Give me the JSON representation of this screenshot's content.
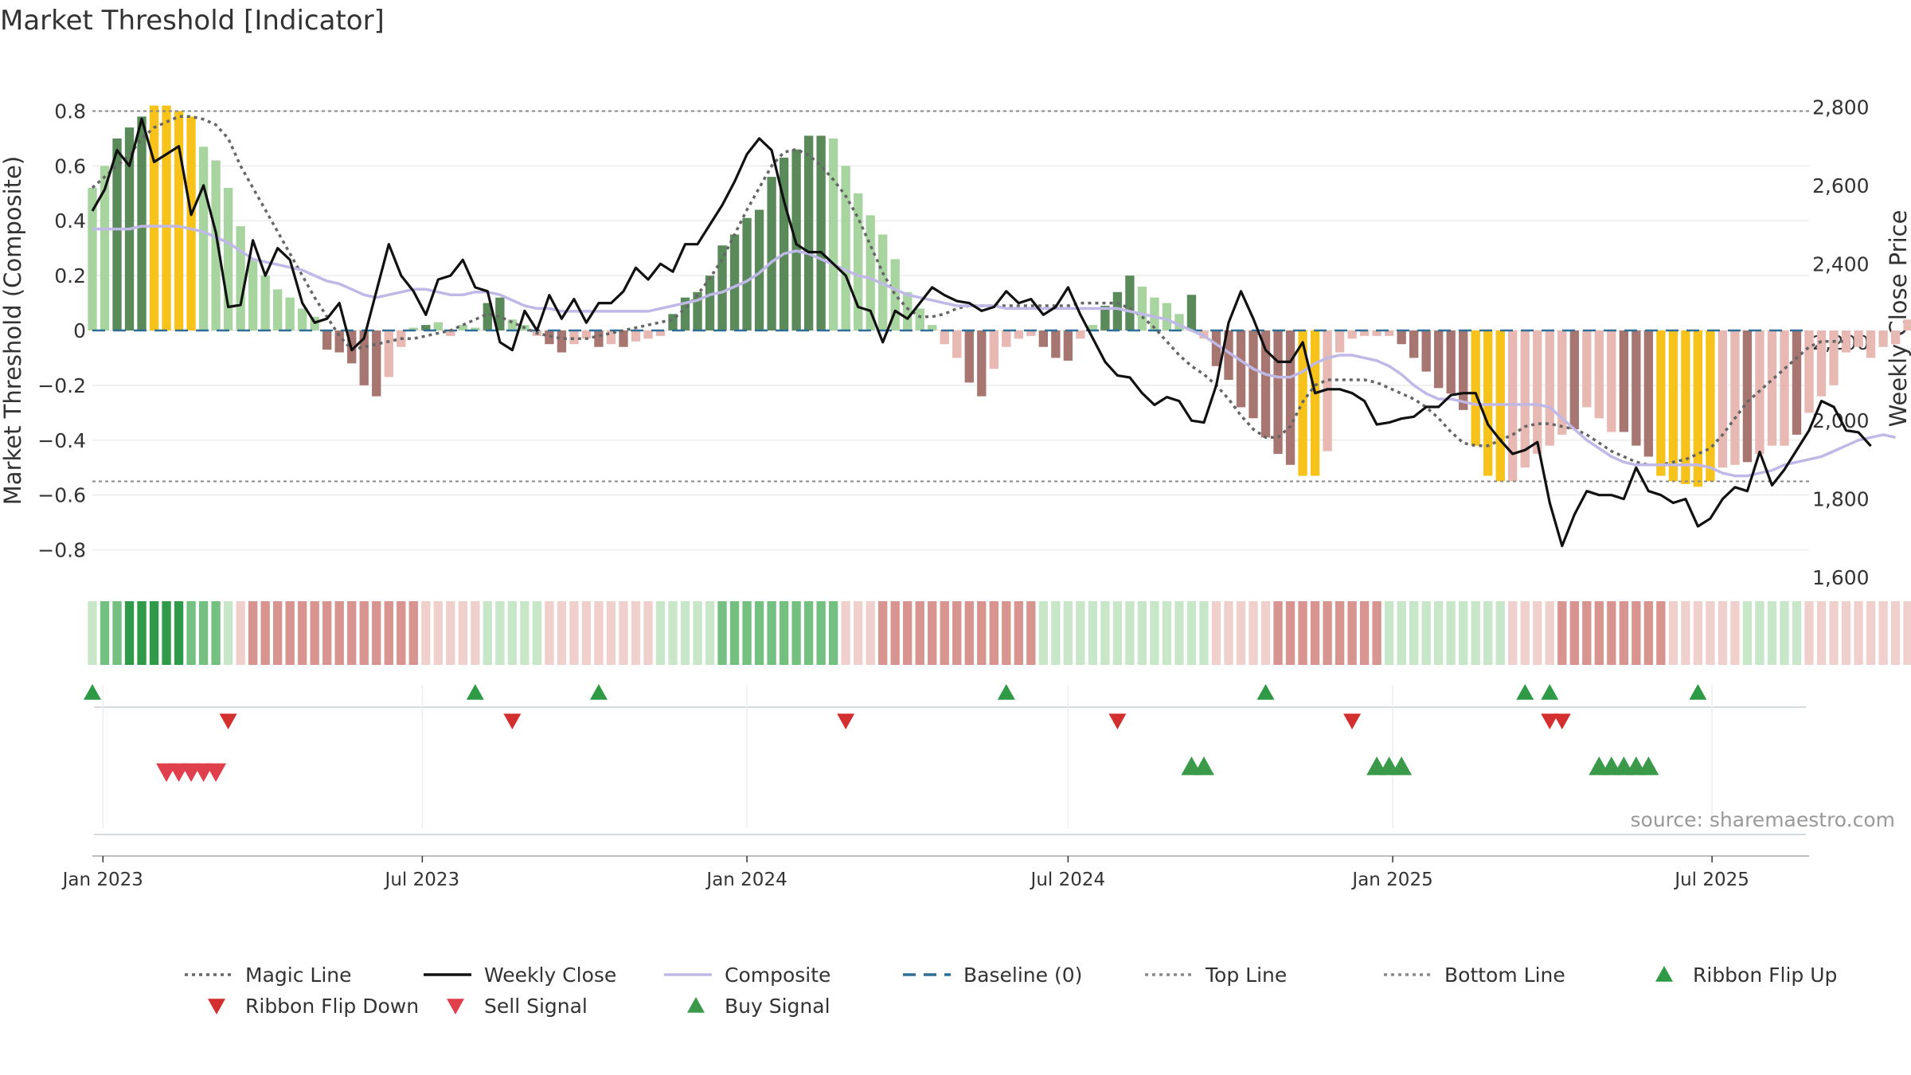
{
  "title": "Market Threshold [Indicator]",
  "source": "source: sharemaestro.com",
  "colors": {
    "green_dark": "#5a8a5a",
    "green_light": "#a8d4a0",
    "red_dark": "#a87670",
    "red_light": "#e8b8b2",
    "extreme": "#f7c31a",
    "close": "#111111",
    "composite": "#c0b8e6",
    "magic": "#666666",
    "baseline": "#2f6e96",
    "threshold": "#888888",
    "up_marker": "#2e9a46",
    "down_marker": "#d32f2f",
    "sell_marker": "#e0404c",
    "buy_marker": "#3a9a4a"
  },
  "chart_data": {
    "type": "bar",
    "title": "Market Threshold [Indicator]",
    "ylabel": "Market Threshold (Composite)",
    "y2label": "Weekly Close Price",
    "ylim": [
      -0.9,
      0.9
    ],
    "y2lim": [
      1600,
      2860
    ],
    "yticks": [
      -0.8,
      -0.6,
      -0.4,
      -0.2,
      0,
      0.2,
      0.4,
      0.6,
      0.8
    ],
    "ytick_labels": [
      "−0.8",
      "−0.6",
      "−0.4",
      "−0.2",
      "0",
      "0.2",
      "0.4",
      "0.6",
      "0.8"
    ],
    "y2ticks": [
      1600,
      1800,
      2000,
      2200,
      2400,
      2600,
      2800
    ],
    "y2tick_labels": [
      "1,600",
      "1,800",
      "2,000",
      "2,200",
      "2,400",
      "2,600",
      "2,800"
    ],
    "x_start": "2022-12-26",
    "x_end": "2025-08-25",
    "xticks": [
      {
        "date": "2023-01-01",
        "label": "Jan 2023"
      },
      {
        "date": "2023-07-01",
        "label": "Jul 2023"
      },
      {
        "date": "2024-01-01",
        "label": "Jan 2024"
      },
      {
        "date": "2024-07-01",
        "label": "Jul 2024"
      },
      {
        "date": "2025-01-01",
        "label": "Jan 2025"
      },
      {
        "date": "2025-07-01",
        "label": "Jul 2025"
      }
    ],
    "top_line": 0.8,
    "bottom_line": -0.55,
    "composite_bars": [
      0.52,
      0.6,
      0.7,
      0.74,
      0.78,
      0.82,
      0.82,
      0.8,
      0.78,
      0.67,
      0.62,
      0.52,
      0.38,
      0.26,
      0.2,
      0.15,
      0.12,
      0.08,
      0.05,
      -0.07,
      -0.08,
      -0.12,
      -0.2,
      -0.24,
      -0.17,
      -0.06,
      0.01,
      0.02,
      0.03,
      -0.02,
      0.02,
      0.01,
      0.1,
      0.12,
      0.04,
      0.02,
      -0.02,
      -0.05,
      -0.08,
      -0.05,
      -0.03,
      -0.06,
      -0.05,
      -0.06,
      -0.04,
      -0.03,
      -0.02,
      0.06,
      0.12,
      0.14,
      0.2,
      0.31,
      0.35,
      0.41,
      0.44,
      0.56,
      0.63,
      0.66,
      0.71,
      0.71,
      0.7,
      0.6,
      0.5,
      0.42,
      0.35,
      0.26,
      0.14,
      0.08,
      0.02,
      -0.05,
      -0.1,
      -0.19,
      -0.24,
      -0.14,
      -0.06,
      -0.03,
      -0.02,
      -0.06,
      -0.1,
      -0.11,
      -0.03,
      0.02,
      0.09,
      0.14,
      0.2,
      0.16,
      0.12,
      0.1,
      0.06,
      0.13,
      -0.03,
      -0.13,
      -0.18,
      -0.28,
      -0.32,
      -0.39,
      -0.45,
      -0.49,
      -0.53,
      -0.53,
      -0.44,
      -0.08,
      -0.03,
      -0.02,
      -0.02,
      -0.02,
      -0.05,
      -0.1,
      -0.15,
      -0.21,
      -0.23,
      -0.29,
      -0.42,
      -0.53,
      -0.55,
      -0.55,
      -0.5,
      -0.45,
      -0.42,
      -0.38,
      -0.36,
      -0.28,
      -0.32,
      -0.37,
      -0.37,
      -0.42,
      -0.46,
      -0.53,
      -0.55,
      -0.56,
      -0.57,
      -0.55,
      -0.5,
      -0.49,
      -0.48,
      -0.45,
      -0.42,
      -0.42,
      -0.38,
      -0.3,
      -0.24,
      -0.2,
      -0.08,
      -0.06,
      -0.1,
      -0.06,
      -0.05,
      0.04,
      0.07,
      0.02,
      -0.02,
      -0.06
    ],
    "bar_colors": [
      "L",
      "L",
      "D",
      "D",
      "D",
      "Y",
      "Y",
      "Y",
      "Y",
      "L",
      "L",
      "L",
      "L",
      "L",
      "L",
      "L",
      "L",
      "L",
      "L",
      "d",
      "d",
      "d",
      "d",
      "d",
      "l",
      "l",
      "L",
      "D",
      "L",
      "l",
      "L",
      "L",
      "D",
      "D",
      "L",
      "L",
      "l",
      "d",
      "d",
      "l",
      "l",
      "d",
      "l",
      "d",
      "l",
      "l",
      "l",
      "D",
      "D",
      "D",
      "D",
      "D",
      "D",
      "D",
      "D",
      "D",
      "D",
      "D",
      "D",
      "D",
      "L",
      "L",
      "L",
      "L",
      "L",
      "L",
      "L",
      "L",
      "L",
      "l",
      "l",
      "d",
      "d",
      "l",
      "l",
      "l",
      "l",
      "d",
      "d",
      "d",
      "l",
      "L",
      "D",
      "D",
      "D",
      "L",
      "L",
      "L",
      "L",
      "D",
      "l",
      "d",
      "d",
      "d",
      "d",
      "d",
      "d",
      "d",
      "Y",
      "Y",
      "l",
      "l",
      "l",
      "l",
      "l",
      "l",
      "d",
      "d",
      "d",
      "d",
      "d",
      "d",
      "Y",
      "Y",
      "Y",
      "l",
      "l",
      "l",
      "l",
      "l",
      "d",
      "l",
      "l",
      "l",
      "d",
      "d",
      "d",
      "Y",
      "Y",
      "Y",
      "Y",
      "Y",
      "l",
      "l",
      "d",
      "l",
      "l",
      "l",
      "d",
      "l",
      "l",
      "l",
      "l",
      "l",
      "l",
      "l",
      "l",
      "l",
      "D",
      "l",
      "l",
      "d"
    ],
    "weekly_close": [
      2535,
      2590,
      2690,
      2650,
      2770,
      2660,
      2680,
      2700,
      2525,
      2600,
      2480,
      2290,
      2295,
      2460,
      2370,
      2440,
      2410,
      2300,
      2250,
      2260,
      2300,
      2180,
      2210,
      2330,
      2450,
      2370,
      2330,
      2270,
      2360,
      2370,
      2410,
      2340,
      2330,
      2200,
      2180,
      2280,
      2230,
      2320,
      2260,
      2310,
      2250,
      2300,
      2300,
      2330,
      2390,
      2360,
      2400,
      2380,
      2450,
      2450,
      2500,
      2550,
      2610,
      2680,
      2720,
      2690,
      2560,
      2450,
      2430,
      2430,
      2400,
      2370,
      2290,
      2280,
      2200,
      2280,
      2260,
      2300,
      2340,
      2320,
      2305,
      2300,
      2280,
      2290,
      2330,
      2300,
      2310,
      2270,
      2290,
      2340,
      2270,
      2210,
      2150,
      2115,
      2110,
      2070,
      2040,
      2060,
      2050,
      2000,
      1995,
      2090,
      2250,
      2330,
      2260,
      2180,
      2150,
      2150,
      2200,
      2070,
      2080,
      2080,
      2070,
      2050,
      1990,
      1995,
      2005,
      2010,
      2035,
      2035,
      2065,
      2070,
      2070,
      1990,
      1950,
      1915,
      1925,
      1945,
      1790,
      1680,
      1760,
      1820,
      1810,
      1810,
      1800,
      1880,
      1820,
      1810,
      1790,
      1800,
      1730,
      1750,
      1800,
      1830,
      1820,
      1920,
      1835,
      1875,
      1925,
      1975,
      2050,
      2035,
      1975,
      1970,
      1935
    ],
    "composite_line": [
      0.37,
      0.37,
      0.37,
      0.37,
      0.38,
      0.38,
      0.38,
      0.38,
      0.37,
      0.36,
      0.34,
      0.32,
      0.29,
      0.26,
      0.25,
      0.24,
      0.23,
      0.22,
      0.2,
      0.18,
      0.17,
      0.15,
      0.13,
      0.12,
      0.13,
      0.14,
      0.15,
      0.15,
      0.14,
      0.13,
      0.13,
      0.14,
      0.14,
      0.13,
      0.11,
      0.09,
      0.08,
      0.08,
      0.07,
      0.07,
      0.07,
      0.07,
      0.07,
      0.07,
      0.07,
      0.07,
      0.08,
      0.09,
      0.1,
      0.11,
      0.13,
      0.14,
      0.16,
      0.18,
      0.21,
      0.25,
      0.28,
      0.29,
      0.28,
      0.26,
      0.24,
      0.22,
      0.2,
      0.19,
      0.17,
      0.15,
      0.13,
      0.12,
      0.11,
      0.1,
      0.09,
      0.09,
      0.09,
      0.09,
      0.08,
      0.08,
      0.08,
      0.08,
      0.08,
      0.08,
      0.08,
      0.08,
      0.08,
      0.08,
      0.07,
      0.06,
      0.05,
      0.04,
      0.02,
      0.0,
      -0.02,
      -0.05,
      -0.08,
      -0.11,
      -0.14,
      -0.16,
      -0.17,
      -0.17,
      -0.15,
      -0.12,
      -0.1,
      -0.09,
      -0.09,
      -0.1,
      -0.11,
      -0.13,
      -0.16,
      -0.2,
      -0.23,
      -0.25,
      -0.25,
      -0.26,
      -0.27,
      -0.27,
      -0.27,
      -0.27,
      -0.27,
      -0.27,
      -0.28,
      -0.32,
      -0.36,
      -0.4,
      -0.43,
      -0.46,
      -0.48,
      -0.49,
      -0.49,
      -0.49,
      -0.49,
      -0.49,
      -0.49,
      -0.5,
      -0.52,
      -0.53,
      -0.53,
      -0.52,
      -0.51,
      -0.49,
      -0.48,
      -0.47,
      -0.46,
      -0.44,
      -0.42,
      -0.4,
      -0.39,
      -0.38,
      -0.39
    ],
    "magic_line": [
      0.52,
      0.56,
      0.6,
      0.64,
      0.7,
      0.74,
      0.76,
      0.78,
      0.78,
      0.77,
      0.75,
      0.7,
      0.6,
      0.52,
      0.44,
      0.36,
      0.28,
      0.2,
      0.12,
      0.05,
      -0.02,
      -0.07,
      -0.06,
      -0.05,
      -0.04,
      -0.03,
      -0.03,
      -0.02,
      -0.01,
      0.0,
      0.02,
      0.04,
      0.06,
      0.05,
      0.03,
      0.01,
      -0.01,
      -0.02,
      -0.03,
      -0.03,
      -0.03,
      -0.02,
      -0.01,
      0.0,
      0.01,
      0.02,
      0.03,
      0.04,
      0.08,
      0.13,
      0.19,
      0.26,
      0.35,
      0.44,
      0.52,
      0.6,
      0.65,
      0.66,
      0.64,
      0.6,
      0.55,
      0.49,
      0.41,
      0.31,
      0.21,
      0.13,
      0.08,
      0.05,
      0.05,
      0.06,
      0.08,
      0.09,
      0.09,
      0.09,
      0.09,
      0.09,
      0.09,
      0.09,
      0.09,
      0.09,
      0.1,
      0.1,
      0.1,
      0.1,
      0.08,
      0.05,
      0.01,
      -0.04,
      -0.09,
      -0.13,
      -0.16,
      -0.2,
      -0.25,
      -0.31,
      -0.36,
      -0.39,
      -0.39,
      -0.35,
      -0.26,
      -0.2,
      -0.18,
      -0.18,
      -0.18,
      -0.18,
      -0.19,
      -0.21,
      -0.23,
      -0.25,
      -0.28,
      -0.32,
      -0.37,
      -0.41,
      -0.42,
      -0.42,
      -0.4,
      -0.38,
      -0.35,
      -0.34,
      -0.34,
      -0.35,
      -0.36,
      -0.38,
      -0.41,
      -0.44,
      -0.46,
      -0.48,
      -0.49,
      -0.49,
      -0.48,
      -0.47,
      -0.45,
      -0.43,
      -0.38,
      -0.32,
      -0.26,
      -0.22,
      -0.18,
      -0.14,
      -0.1,
      -0.06,
      -0.04,
      -0.04,
      -0.04
    ],
    "ribbon": [
      1,
      2,
      2,
      3,
      3,
      3,
      3,
      3,
      2,
      2,
      2,
      1,
      -1,
      -2,
      -2,
      -2,
      -2,
      -2,
      -2,
      -2,
      -2,
      -2,
      -2,
      -2,
      -2,
      -2,
      -2,
      -1,
      -1,
      -1,
      -1,
      -1,
      1,
      1,
      1,
      1,
      1,
      -1,
      -1,
      -1,
      -1,
      -1,
      -1,
      -1,
      -1,
      -1,
      1,
      1,
      1,
      1,
      1,
      2,
      2,
      2,
      2,
      2,
      2,
      2,
      2,
      2,
      2,
      -1,
      -1,
      -1,
      -2,
      -2,
      -2,
      -2,
      -2,
      -2,
      -2,
      -2,
      -2,
      -2,
      -2,
      -2,
      -2,
      1,
      1,
      1,
      1,
      1,
      1,
      1,
      1,
      1,
      1,
      1,
      1,
      1,
      1,
      -1,
      -1,
      -1,
      -1,
      -1,
      -2,
      -2,
      -2,
      -2,
      -2,
      -2,
      -2,
      -2,
      -2,
      1,
      1,
      1,
      1,
      1,
      1,
      1,
      1,
      1,
      1,
      -1,
      -1,
      -1,
      -1,
      -2,
      -2,
      -2,
      -2,
      -2,
      -2,
      -2,
      -2,
      -2,
      -1,
      -1,
      -1,
      -1,
      -1,
      -1,
      1,
      1,
      1,
      1,
      1,
      -1,
      -1,
      -1,
      -1,
      -1,
      -1,
      -1,
      -1,
      -1,
      -1,
      -1,
      1,
      1,
      1,
      1,
      1,
      1,
      1,
      1,
      1,
      1,
      1,
      1,
      1,
      1,
      1
    ],
    "ribbon_flip_up": [
      "2022-12-26",
      "2023-07-31",
      "2023-10-09",
      "2024-05-27",
      "2024-10-21",
      "2025-03-17",
      "2025-03-31",
      "2025-06-23"
    ],
    "ribbon_flip_down": [
      "2023-03-13",
      "2023-08-21",
      "2024-02-26",
      "2024-07-29",
      "2024-12-09",
      "2025-03-31",
      "2025-04-07"
    ],
    "sell_signal": [
      "2023-02-06",
      "2023-02-13",
      "2023-02-20",
      "2023-02-27",
      "2023-03-06"
    ],
    "buy_signal": [
      "2024-09-09",
      "2024-09-16",
      "2024-12-23",
      "2024-12-30",
      "2025-01-06",
      "2025-04-28",
      "2025-05-05",
      "2025-05-12",
      "2025-05-19",
      "2025-05-26"
    ]
  },
  "legend": [
    {
      "label": "Magic Line",
      "kind": "dotted",
      "color": "#666666"
    },
    {
      "label": "Weekly Close",
      "kind": "solid",
      "color": "#111111"
    },
    {
      "label": "Composite",
      "kind": "solid",
      "color": "#c0b8e6"
    },
    {
      "label": "Baseline (0)",
      "kind": "dashed",
      "color": "#2f6e96"
    },
    {
      "label": "Top Line",
      "kind": "dotted",
      "color": "#888888"
    },
    {
      "label": "Bottom Line",
      "kind": "dotted",
      "color": "#888888"
    },
    {
      "label": "Ribbon Flip Up",
      "kind": "tri-up",
      "color": "#2e9a46"
    },
    {
      "label": "Ribbon Flip Down",
      "kind": "tri-down",
      "color": "#d32f2f"
    },
    {
      "label": "Sell Signal",
      "kind": "tri-down",
      "color": "#e0404c"
    },
    {
      "label": "Buy Signal",
      "kind": "tri-up",
      "color": "#3a9a4a"
    }
  ]
}
